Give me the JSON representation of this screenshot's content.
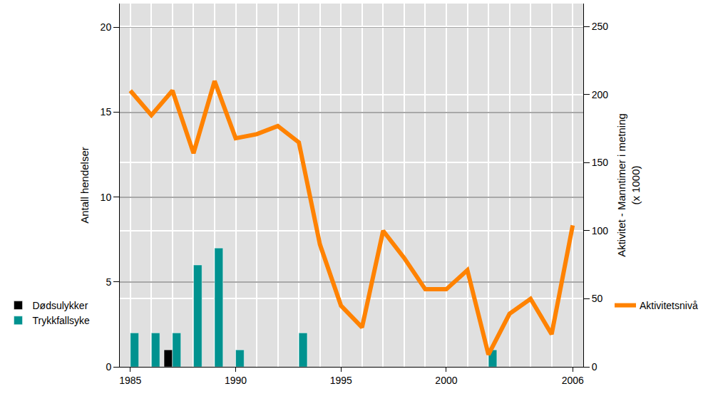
{
  "chart_data": {
    "type": "bar",
    "y_label": "Antall hendelser",
    "y2_label": "Aktivitet - Manntimer i metning\n(x 1000)",
    "xlim": [
      1984.5,
      2006.5
    ],
    "xticks": [
      1985,
      1990,
      1995,
      2000,
      2006
    ],
    "ylim": [
      0,
      21.4
    ],
    "yticks": [
      0,
      5,
      10,
      15,
      20
    ],
    "y2lim": [
      0,
      267
    ],
    "y2ticks": [
      0,
      50,
      100,
      150,
      200,
      250
    ],
    "grid": true,
    "legend": "bottom",
    "series": [
      {
        "name": "Dødsulykker",
        "type": "bar",
        "color": "#000000",
        "x": [
          1987
        ],
        "values": [
          1
        ]
      },
      {
        "name": "Trykkfallsyke",
        "type": "bar",
        "color": "#00928f",
        "x": [
          1985,
          1986,
          1987,
          1988,
          1989,
          1990,
          1993,
          2002
        ],
        "values": [
          2,
          2,
          2,
          6,
          7,
          1,
          2,
          1
        ]
      },
      {
        "name": "Aktivitetsnivå",
        "type": "line",
        "color": "#ff8200",
        "axis": "y2",
        "x": [
          1985,
          1986,
          1987,
          1988,
          1989,
          1990,
          1991,
          1992,
          1993,
          1994,
          1995,
          1996,
          1997,
          1998,
          1999,
          2000,
          2001,
          2002,
          2003,
          2004,
          2005,
          2006
        ],
        "values": [
          203,
          185,
          203,
          157,
          210,
          168,
          171,
          177,
          165,
          90,
          45,
          29,
          100,
          80,
          57,
          57,
          71,
          9,
          39,
          50,
          24,
          104
        ]
      }
    ]
  }
}
